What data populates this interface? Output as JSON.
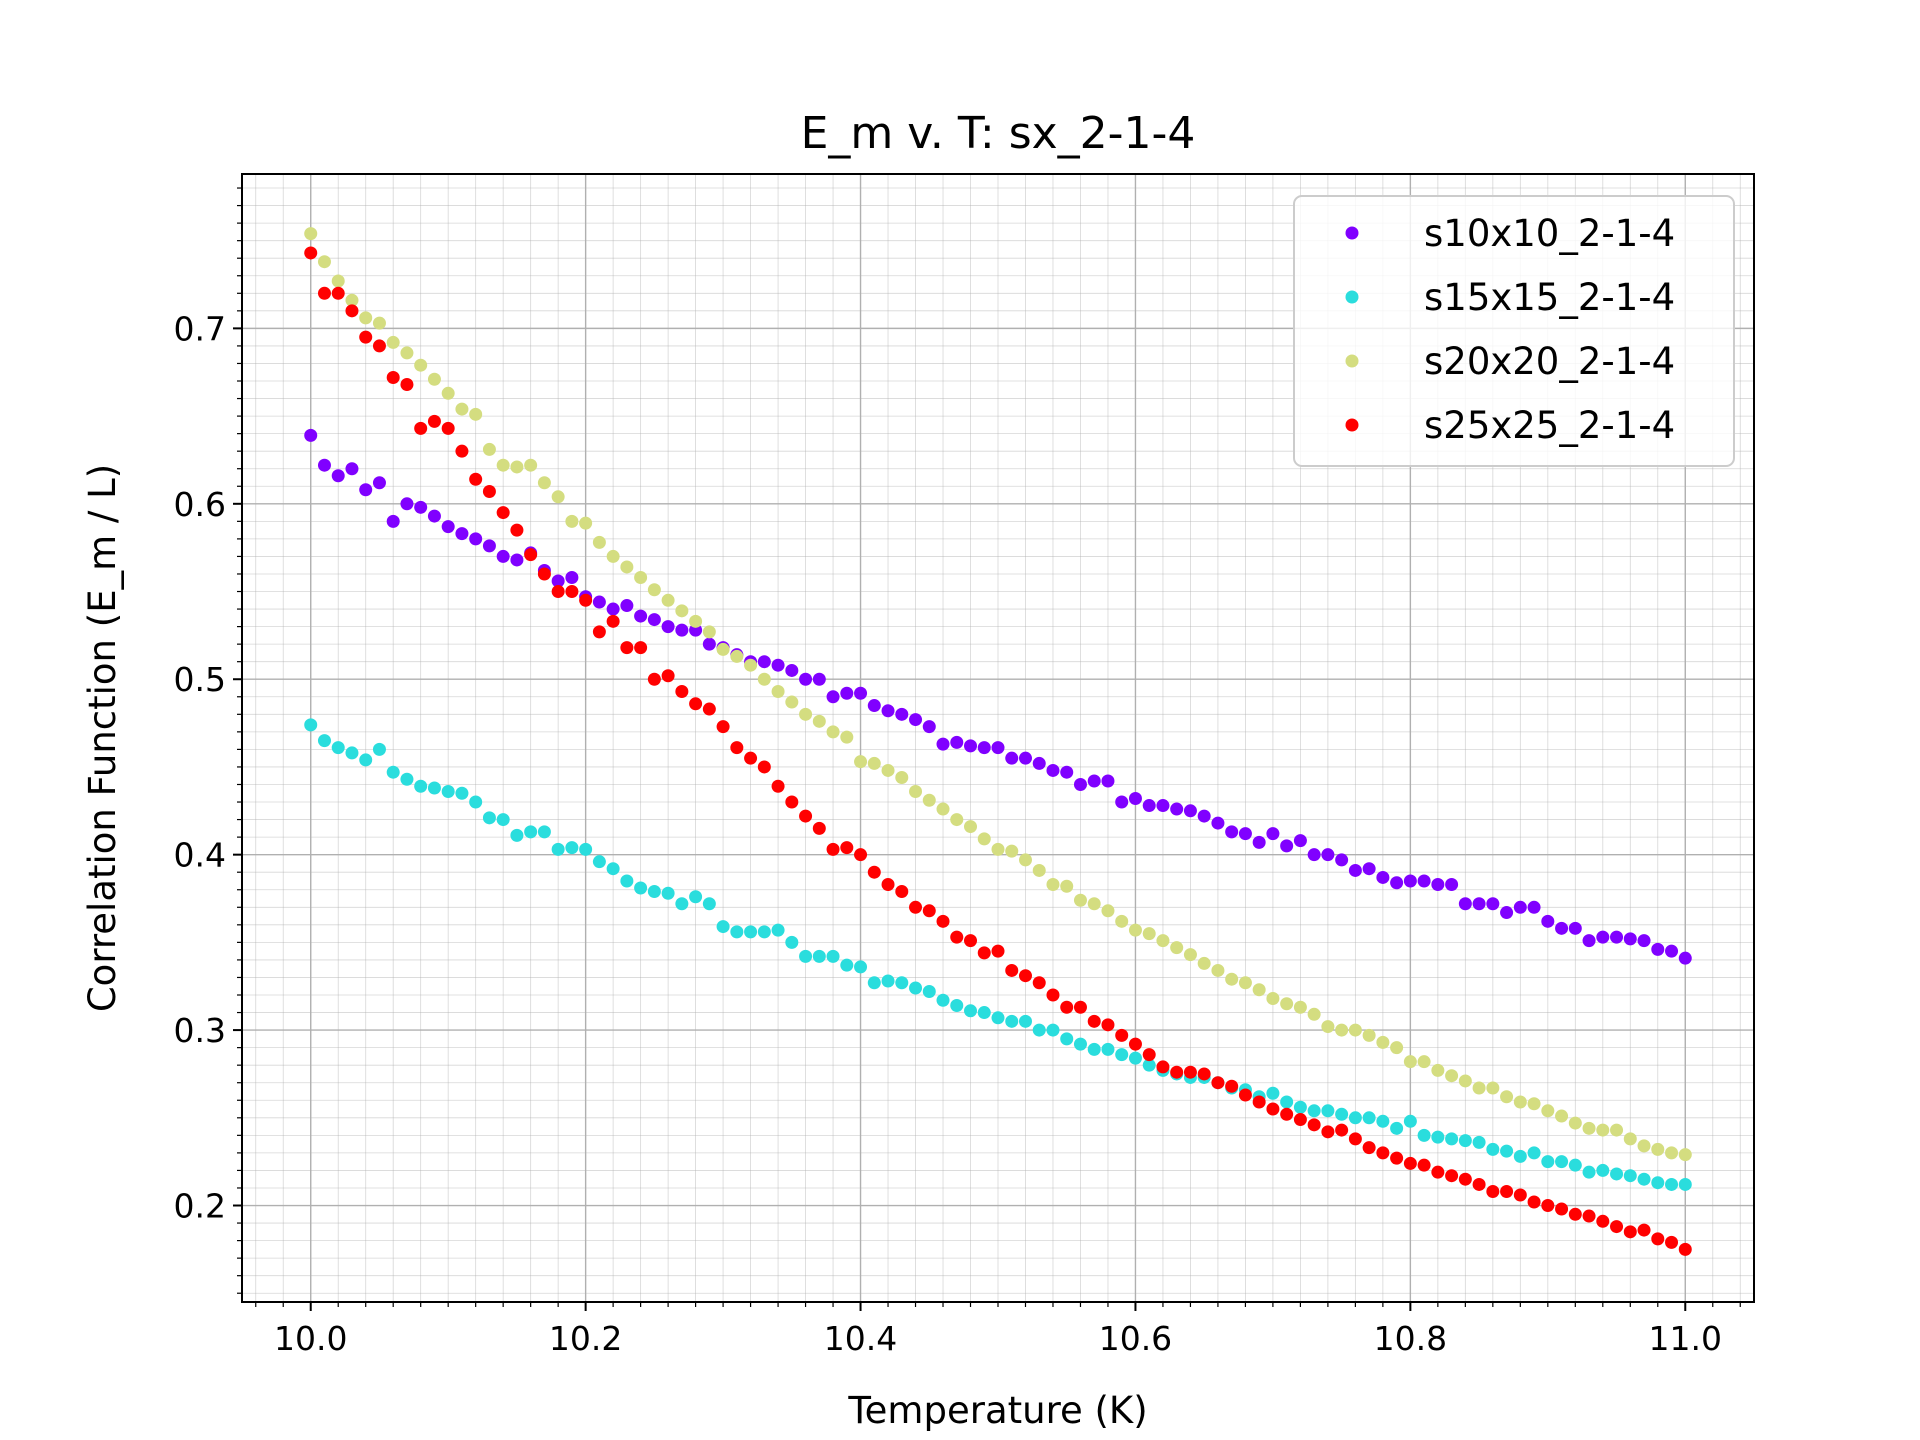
{
  "chart_data": {
    "type": "scatter",
    "title": "E_m v. T: sx_2-1-4",
    "xlabel": "Temperature (K)",
    "ylabel": "Correlation Function (E_m / L)",
    "xlim": [
      9.95,
      11.05
    ],
    "ylim": [
      0.145,
      0.788
    ],
    "x_ticks": [
      10.0,
      10.2,
      10.4,
      10.6,
      10.8,
      11.0
    ],
    "x_tick_labels": [
      "10.0",
      "10.2",
      "10.4",
      "10.6",
      "10.8",
      "11.0"
    ],
    "y_ticks": [
      0.2,
      0.3,
      0.4,
      0.5,
      0.6,
      0.7
    ],
    "y_tick_labels": [
      "0.2",
      "0.3",
      "0.4",
      "0.5",
      "0.6",
      "0.7"
    ],
    "grid": true,
    "minor_grid": true,
    "legend_position": "top-right",
    "x": [
      10.0,
      10.01,
      10.02,
      10.03,
      10.04,
      10.05,
      10.06,
      10.07,
      10.08,
      10.09,
      10.1,
      10.11,
      10.12,
      10.13,
      10.14,
      10.15,
      10.16,
      10.17,
      10.18,
      10.19,
      10.2,
      10.21,
      10.22,
      10.23,
      10.24,
      10.25,
      10.26,
      10.27,
      10.28,
      10.29,
      10.3,
      10.31,
      10.32,
      10.33,
      10.34,
      10.35,
      10.36,
      10.37,
      10.38,
      10.39,
      10.4,
      10.41,
      10.42,
      10.43,
      10.44,
      10.45,
      10.46,
      10.47,
      10.48,
      10.49,
      10.5,
      10.51,
      10.52,
      10.53,
      10.54,
      10.55,
      10.56,
      10.57,
      10.58,
      10.59,
      10.6,
      10.61,
      10.62,
      10.63,
      10.64,
      10.65,
      10.66,
      10.67,
      10.68,
      10.69,
      10.7,
      10.71,
      10.72,
      10.73,
      10.74,
      10.75,
      10.76,
      10.77,
      10.78,
      10.79,
      10.8,
      10.81,
      10.82,
      10.83,
      10.84,
      10.85,
      10.86,
      10.87,
      10.88,
      10.89,
      10.9,
      10.91,
      10.92,
      10.93,
      10.94,
      10.95,
      10.96,
      10.97,
      10.98,
      10.99,
      11.0
    ],
    "series": [
      {
        "name": "s10x10_2-1-4",
        "color": "#8000ff",
        "values": [
          0.639,
          0.622,
          0.616,
          0.62,
          0.608,
          0.612,
          0.59,
          0.6,
          0.598,
          0.593,
          0.587,
          0.583,
          0.58,
          0.576,
          0.57,
          0.568,
          0.572,
          0.562,
          0.556,
          0.558,
          0.547,
          0.544,
          0.54,
          0.542,
          0.536,
          0.534,
          0.53,
          0.528,
          0.528,
          0.52,
          0.518,
          0.514,
          0.51,
          0.51,
          0.508,
          0.505,
          0.5,
          0.5,
          0.49,
          0.492,
          0.492,
          0.485,
          0.482,
          0.48,
          0.477,
          0.473,
          0.463,
          0.464,
          0.462,
          0.461,
          0.461,
          0.455,
          0.455,
          0.452,
          0.448,
          0.447,
          0.44,
          0.442,
          0.442,
          0.43,
          0.432,
          0.428,
          0.428,
          0.426,
          0.425,
          0.422,
          0.418,
          0.413,
          0.412,
          0.407,
          0.412,
          0.405,
          0.408,
          0.4,
          0.4,
          0.397,
          0.391,
          0.392,
          0.387,
          0.384,
          0.385,
          0.385,
          0.383,
          0.383,
          0.372,
          0.372,
          0.372,
          0.367,
          0.37,
          0.37,
          0.362,
          0.358,
          0.358,
          0.351,
          0.353,
          0.353,
          0.352,
          0.351,
          0.346,
          0.345,
          0.341
        ]
      },
      {
        "name": "s15x15_2-1-4",
        "color": "#2adddd",
        "values": [
          0.474,
          0.465,
          0.461,
          0.458,
          0.454,
          0.46,
          0.447,
          0.443,
          0.439,
          0.438,
          0.436,
          0.435,
          0.43,
          0.421,
          0.42,
          0.411,
          0.413,
          0.413,
          0.403,
          0.404,
          0.403,
          0.396,
          0.392,
          0.385,
          0.381,
          0.379,
          0.378,
          0.372,
          0.376,
          0.372,
          0.359,
          0.356,
          0.356,
          0.356,
          0.357,
          0.35,
          0.342,
          0.342,
          0.342,
          0.337,
          0.336,
          0.327,
          0.328,
          0.327,
          0.324,
          0.322,
          0.317,
          0.314,
          0.311,
          0.31,
          0.307,
          0.305,
          0.305,
          0.3,
          0.3,
          0.295,
          0.292,
          0.289,
          0.289,
          0.286,
          0.284,
          0.28,
          0.277,
          0.275,
          0.273,
          0.273,
          0.27,
          0.267,
          0.266,
          0.262,
          0.264,
          0.259,
          0.256,
          0.254,
          0.254,
          0.252,
          0.25,
          0.25,
          0.248,
          0.244,
          0.248,
          0.24,
          0.239,
          0.238,
          0.237,
          0.236,
          0.232,
          0.231,
          0.228,
          0.23,
          0.225,
          0.225,
          0.223,
          0.219,
          0.22,
          0.218,
          0.217,
          0.215,
          0.213,
          0.212,
          0.212
        ]
      },
      {
        "name": "s20x20_2-1-4",
        "color": "#d4dd80",
        "values": [
          0.754,
          0.738,
          0.727,
          0.716,
          0.706,
          0.703,
          0.692,
          0.686,
          0.679,
          0.671,
          0.663,
          0.654,
          0.651,
          0.631,
          0.622,
          0.621,
          0.622,
          0.612,
          0.604,
          0.59,
          0.589,
          0.578,
          0.57,
          0.564,
          0.558,
          0.551,
          0.545,
          0.539,
          0.533,
          0.527,
          0.517,
          0.513,
          0.508,
          0.5,
          0.493,
          0.487,
          0.48,
          0.476,
          0.47,
          0.467,
          0.453,
          0.452,
          0.448,
          0.444,
          0.436,
          0.431,
          0.426,
          0.42,
          0.416,
          0.409,
          0.403,
          0.402,
          0.397,
          0.391,
          0.383,
          0.382,
          0.374,
          0.372,
          0.368,
          0.362,
          0.357,
          0.355,
          0.351,
          0.347,
          0.343,
          0.338,
          0.334,
          0.329,
          0.327,
          0.323,
          0.318,
          0.315,
          0.313,
          0.309,
          0.302,
          0.3,
          0.3,
          0.297,
          0.293,
          0.29,
          0.282,
          0.282,
          0.277,
          0.274,
          0.271,
          0.267,
          0.267,
          0.262,
          0.259,
          0.258,
          0.254,
          0.251,
          0.247,
          0.244,
          0.243,
          0.243,
          0.238,
          0.234,
          0.232,
          0.23,
          0.229
        ]
      },
      {
        "name": "s25x25_2-1-4",
        "color": "#ff0000",
        "values": [
          0.743,
          0.72,
          0.72,
          0.71,
          0.695,
          0.69,
          0.672,
          0.668,
          0.643,
          0.647,
          0.643,
          0.63,
          0.614,
          0.607,
          0.595,
          0.585,
          0.571,
          0.56,
          0.55,
          0.55,
          0.545,
          0.527,
          0.533,
          0.518,
          0.518,
          0.5,
          0.502,
          0.493,
          0.486,
          0.483,
          0.473,
          0.461,
          0.455,
          0.45,
          0.439,
          0.43,
          0.422,
          0.415,
          0.403,
          0.404,
          0.4,
          0.39,
          0.383,
          0.379,
          0.37,
          0.368,
          0.362,
          0.353,
          0.351,
          0.344,
          0.345,
          0.334,
          0.331,
          0.327,
          0.32,
          0.313,
          0.313,
          0.305,
          0.303,
          0.297,
          0.292,
          0.286,
          0.279,
          0.276,
          0.276,
          0.275,
          0.27,
          0.268,
          0.263,
          0.259,
          0.255,
          0.252,
          0.249,
          0.246,
          0.242,
          0.243,
          0.238,
          0.233,
          0.23,
          0.227,
          0.224,
          0.223,
          0.219,
          0.217,
          0.215,
          0.212,
          0.208,
          0.208,
          0.206,
          0.202,
          0.2,
          0.198,
          0.195,
          0.194,
          0.191,
          0.188,
          0.185,
          0.186,
          0.181,
          0.179,
          0.175
        ]
      }
    ]
  }
}
